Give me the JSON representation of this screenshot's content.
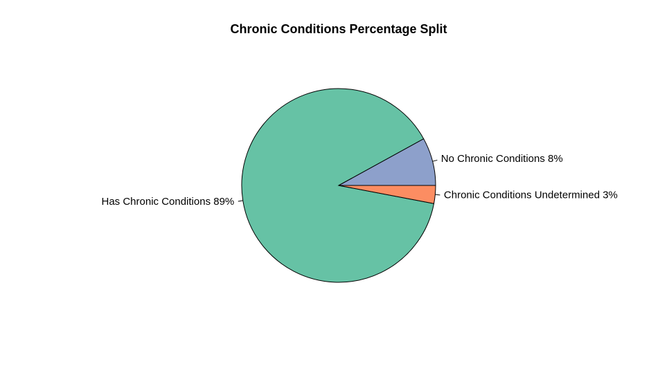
{
  "chart_data": {
    "type": "pie",
    "title": "Chronic Conditions Percentage Split",
    "direction": "counterclockwise",
    "start": "3 o'clock",
    "slices": [
      {
        "label": "No Chronic Conditions 8%",
        "category": "No Chronic Conditions",
        "value": 8,
        "color": "#8DA0CB"
      },
      {
        "label": "Has Chronic Conditions 89%",
        "category": "Has Chronic Conditions",
        "value": 89,
        "color": "#66C2A5"
      },
      {
        "label": "Chronic Conditions Undetermined 3%",
        "category": "Chronic Conditions Undetermined",
        "value": 3,
        "color": "#FC8D62"
      }
    ],
    "border_color": "#000000",
    "legend": "none",
    "grid": false
  }
}
